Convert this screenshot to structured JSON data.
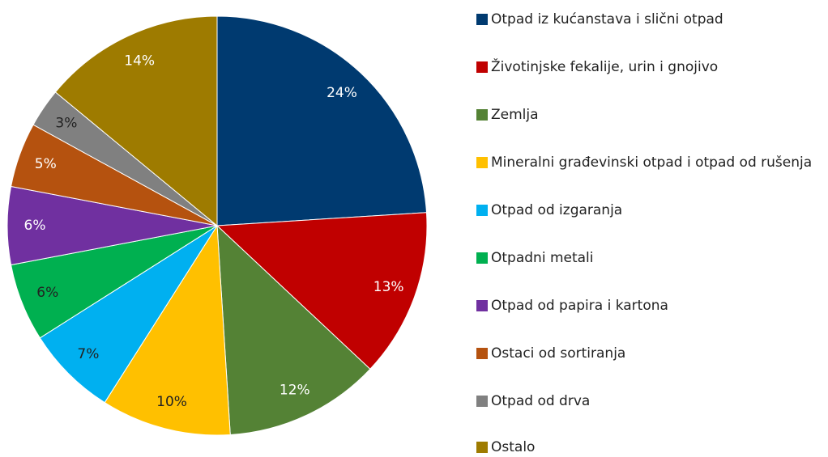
{
  "chart_data": {
    "type": "pie",
    "categories": [
      "Otpad iz kućanstava i slični otpad",
      "Životinjske fekalije, urin i gnojivo",
      "Zemlja",
      "Mineralni građevinski otpad i otpad od rušenja",
      "Otpad od izgaranja",
      "Otpadni metali",
      "Otpad od papira i kartona",
      "Ostaci od sortiranja",
      "Otpad od drva",
      "Ostalo"
    ],
    "values": [
      24,
      13,
      12,
      10,
      7,
      6,
      6,
      5,
      3,
      14
    ],
    "value_labels": [
      "24%",
      "13%",
      "12%",
      "10%",
      "7%",
      "6%",
      "6%",
      "5%",
      "3%",
      "14%"
    ],
    "colors": [
      "#003a70",
      "#c00000",
      "#548235",
      "#ffc000",
      "#00b0f0",
      "#00b050",
      "#7030a0",
      "#b5520f",
      "#808080",
      "#9e7b00"
    ],
    "label_colors": [
      "#ffffff",
      "#ffffff",
      "#ffffff",
      "#222222",
      "#222222",
      "#222222",
      "#ffffff",
      "#ffffff",
      "#222222",
      "#ffffff"
    ],
    "legend": "right"
  }
}
